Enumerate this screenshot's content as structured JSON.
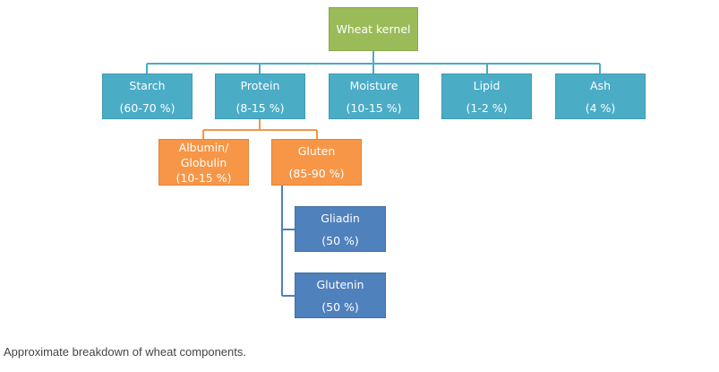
{
  "diagram": {
    "root": {
      "label": "Wheat kernel"
    },
    "components": [
      {
        "label": "Starch",
        "value": "(60-70 %)"
      },
      {
        "label": "Protein",
        "value": "(8-15 %)"
      },
      {
        "label": "Moisture",
        "value": "(10-15 %)"
      },
      {
        "label": "Lipid",
        "value": "(1-2 %)"
      },
      {
        "label": "Ash",
        "value": "(4 %)"
      }
    ],
    "protein_parts": [
      {
        "label_line1": "Albumin/",
        "label_line2": "Globulin",
        "value": "(10-15 %)"
      },
      {
        "label": "Gluten",
        "value": "(85-90 %)"
      }
    ],
    "gluten_parts": [
      {
        "label": "Gliadin",
        "value": "(50 %)"
      },
      {
        "label": "Glutenin",
        "value": "(50 %)"
      }
    ]
  },
  "caption": "Approximate breakdown of wheat components.",
  "colors": {
    "root": "#9bbb59",
    "component": "#4bacc6",
    "protein_part": "#f79646",
    "gluten_part": "#4f81bd",
    "connector_blue": "#4bacc6",
    "connector_orange": "#f79646",
    "connector_dark": "#4f81bd"
  }
}
